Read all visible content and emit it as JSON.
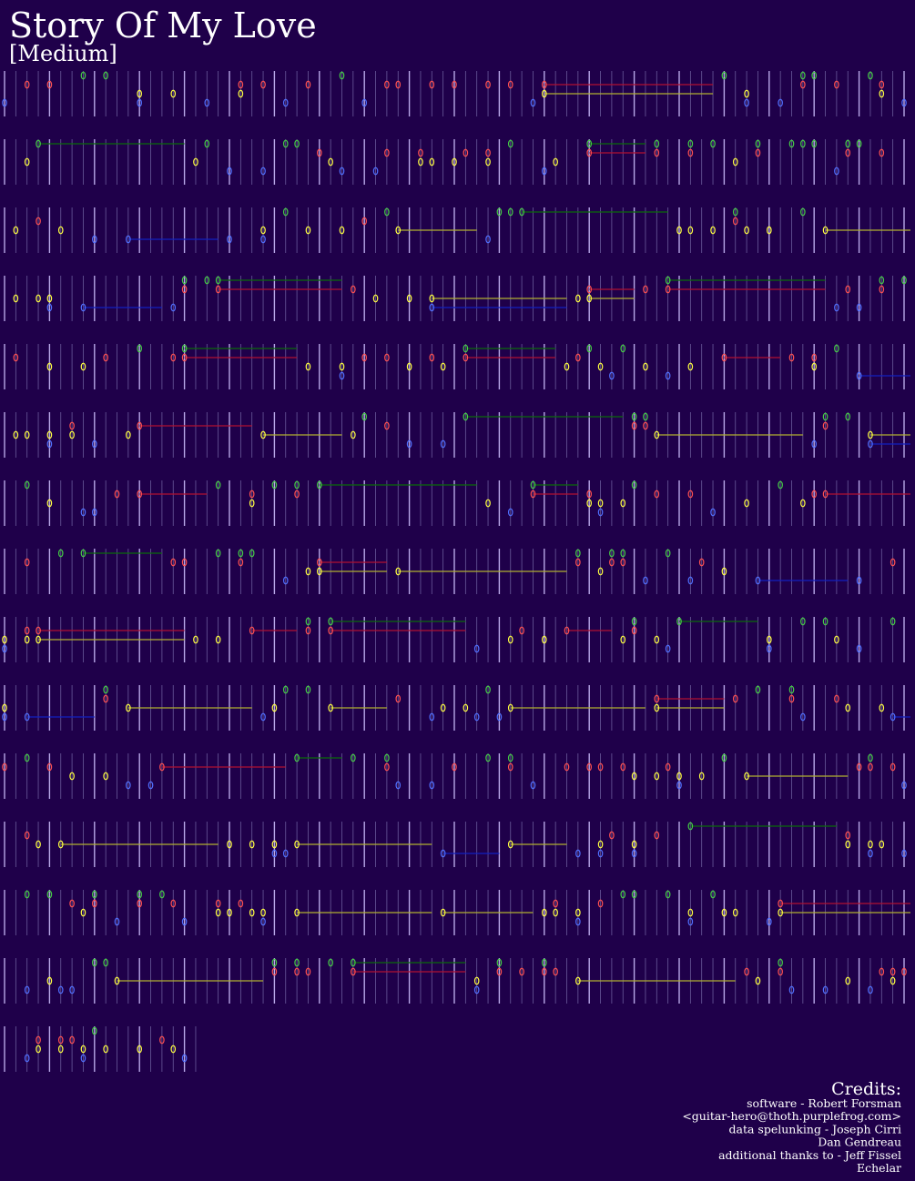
{
  "header": {
    "title": "Story Of My Love",
    "difficulty": "[Medium]"
  },
  "credits": {
    "heading": "Credits:",
    "lines": [
      "software - Robert Forsman",
      "<guitar-hero@thoth.purplefrog.com>",
      "data spelunking - Joseph Cirri",
      "Dan Gendreau",
      "additional thanks to - Jeff Fissel",
      "Echelar"
    ]
  }
}
